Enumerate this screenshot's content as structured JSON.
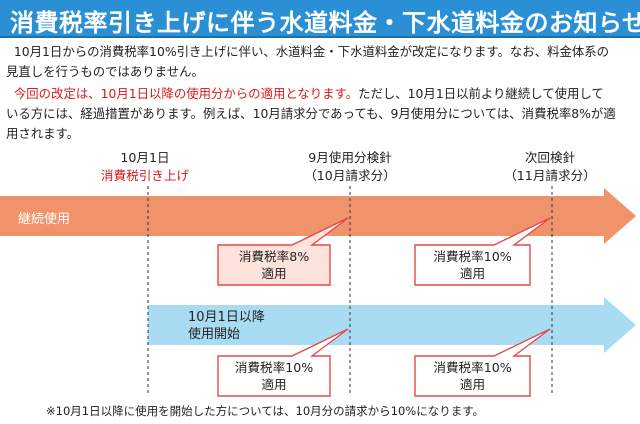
{
  "title": "消費税率引き上げに伴う水道料金・下水道料金のお知らせ",
  "paragraph1": {
    "line1": "10月1日からの消費税率10%引き上げに伴い、水道料金・下水道料金が改定になります。なお、料金体系の",
    "line2": "見直しを行うものではありません。"
  },
  "paragraph2": {
    "red_text": "今回の改定は、10月1日以降の使用分からの適用となります。",
    "line1_rest": "ただし、10月1日以前より継続して使用して",
    "line2": "いる方には、経過措置があります。例えば、10月請求分であっても、9月使用分については、消費税率8%が適",
    "line3": "用されます。"
  },
  "timeline": {
    "oct1_date": "10月1日",
    "oct1_event": "消費税引き上げ",
    "sep_reading": "9月使用分検針",
    "sep_billing": "（10月請求分）",
    "next_reading": "次回検針",
    "next_billing": "（11月請求分）"
  },
  "row_continuing": {
    "label": "継続使用",
    "color": "#f0936b",
    "callout1": {
      "line1": "消費税率8%",
      "line2": "適用"
    },
    "callout2": {
      "line1": "消費税率10%",
      "line2": "適用"
    }
  },
  "row_new": {
    "label_line1": "10月1日以降",
    "label_line2": "使用開始",
    "color": "#a9dcf2",
    "callout1": {
      "line1": "消費税率10%",
      "line2": "適用"
    },
    "callout2": {
      "line1": "消費税率10%",
      "line2": "適用"
    }
  },
  "footnote": "※10月1日以降に使用を開始した方については、10月分の請求から10%になります。"
}
